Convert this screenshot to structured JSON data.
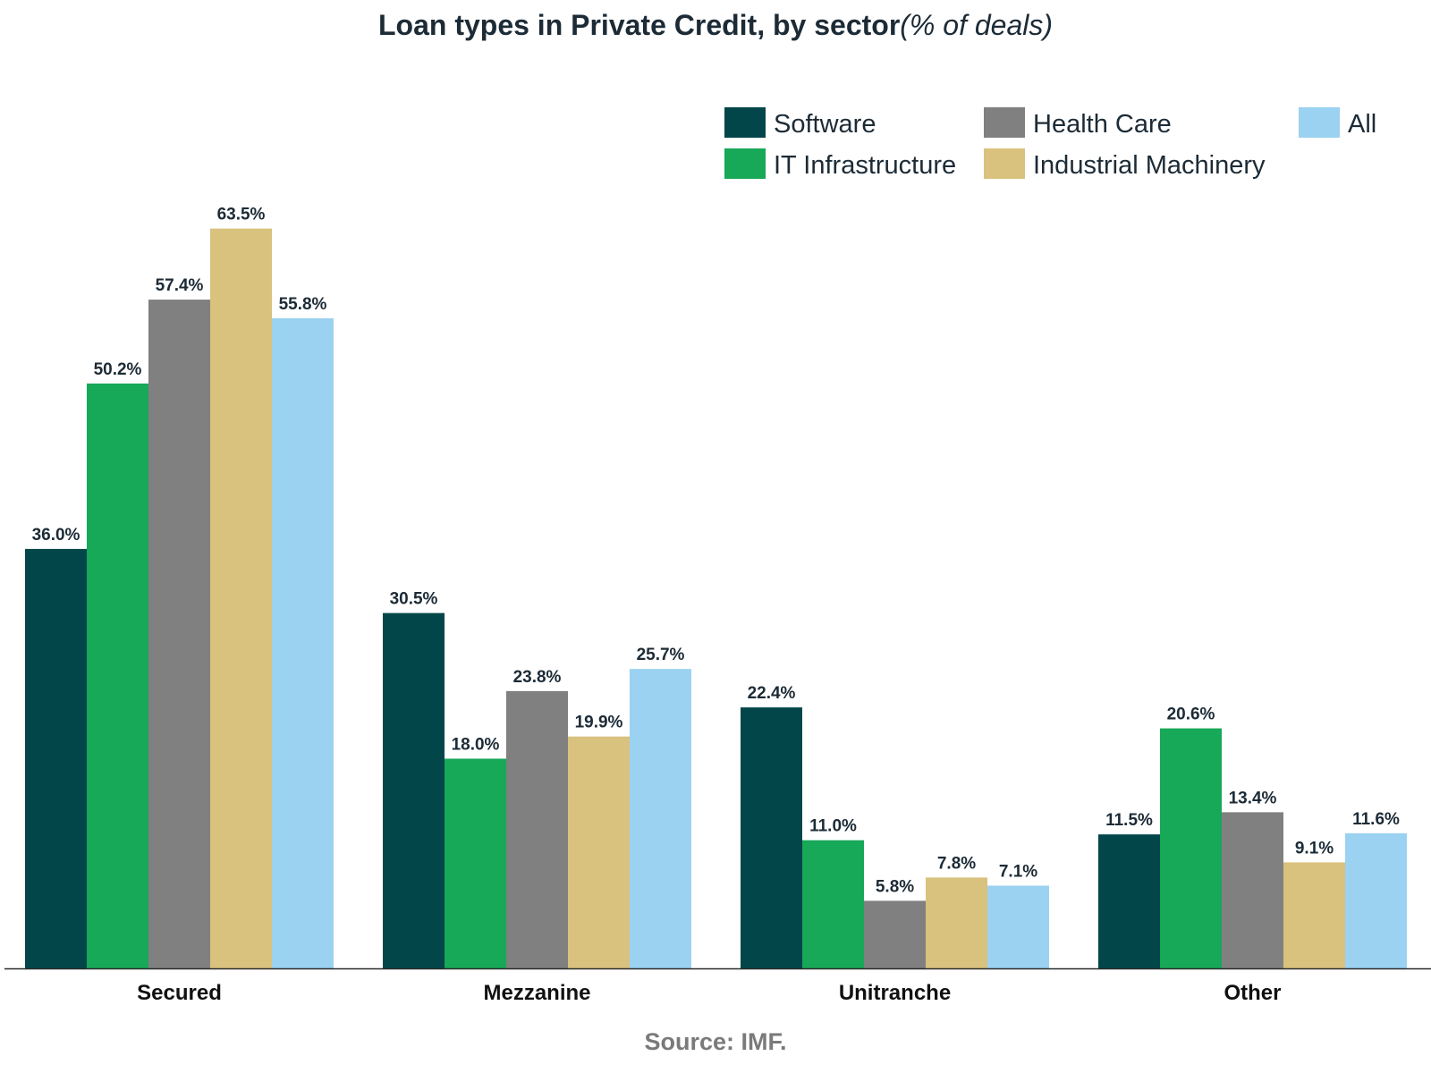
{
  "title": {
    "main": "Loan types in Private Credit, by sector",
    "sub": "(% of deals)"
  },
  "source": "Source: IMF.",
  "chart_data": {
    "type": "bar",
    "title": "Loan types in Private Credit, by sector",
    "subtitle": "(% of deals)",
    "categories": [
      "Secured",
      "Mezzanine",
      "Unitranche",
      "Other"
    ],
    "series": [
      {
        "name": "Software",
        "color": "#02464a",
        "values": [
          36.0,
          30.5,
          22.4,
          11.5
        ],
        "labels": [
          "36.0%",
          "30.5%",
          "22.4%",
          "11.5%"
        ]
      },
      {
        "name": "IT Infrastructure",
        "color": "#17a858",
        "values": [
          50.2,
          18.0,
          11.0,
          20.6
        ],
        "labels": [
          "50.2%",
          "18.0%",
          "11.0%",
          "20.6%"
        ]
      },
      {
        "name": "Health Care",
        "color": "#808080",
        "values": [
          57.4,
          23.8,
          5.8,
          13.4
        ],
        "labels": [
          "57.4%",
          "23.8%",
          "5.8%",
          "13.4%"
        ]
      },
      {
        "name": "Industrial Machinery",
        "color": "#d9c17e",
        "values": [
          63.5,
          19.9,
          7.8,
          9.1
        ],
        "labels": [
          "63.5%",
          "19.9%",
          "7.8%",
          "9.1%"
        ]
      },
      {
        "name": "All",
        "color": "#9bd2f1",
        "values": [
          55.8,
          25.7,
          7.1,
          11.6
        ],
        "labels": [
          "55.8%",
          "25.7%",
          "7.1%",
          "11.6%"
        ]
      }
    ],
    "ylim": [
      0,
      65
    ],
    "xlabel": "",
    "ylabel": "",
    "grid": false,
    "legend_position": "top-right"
  }
}
